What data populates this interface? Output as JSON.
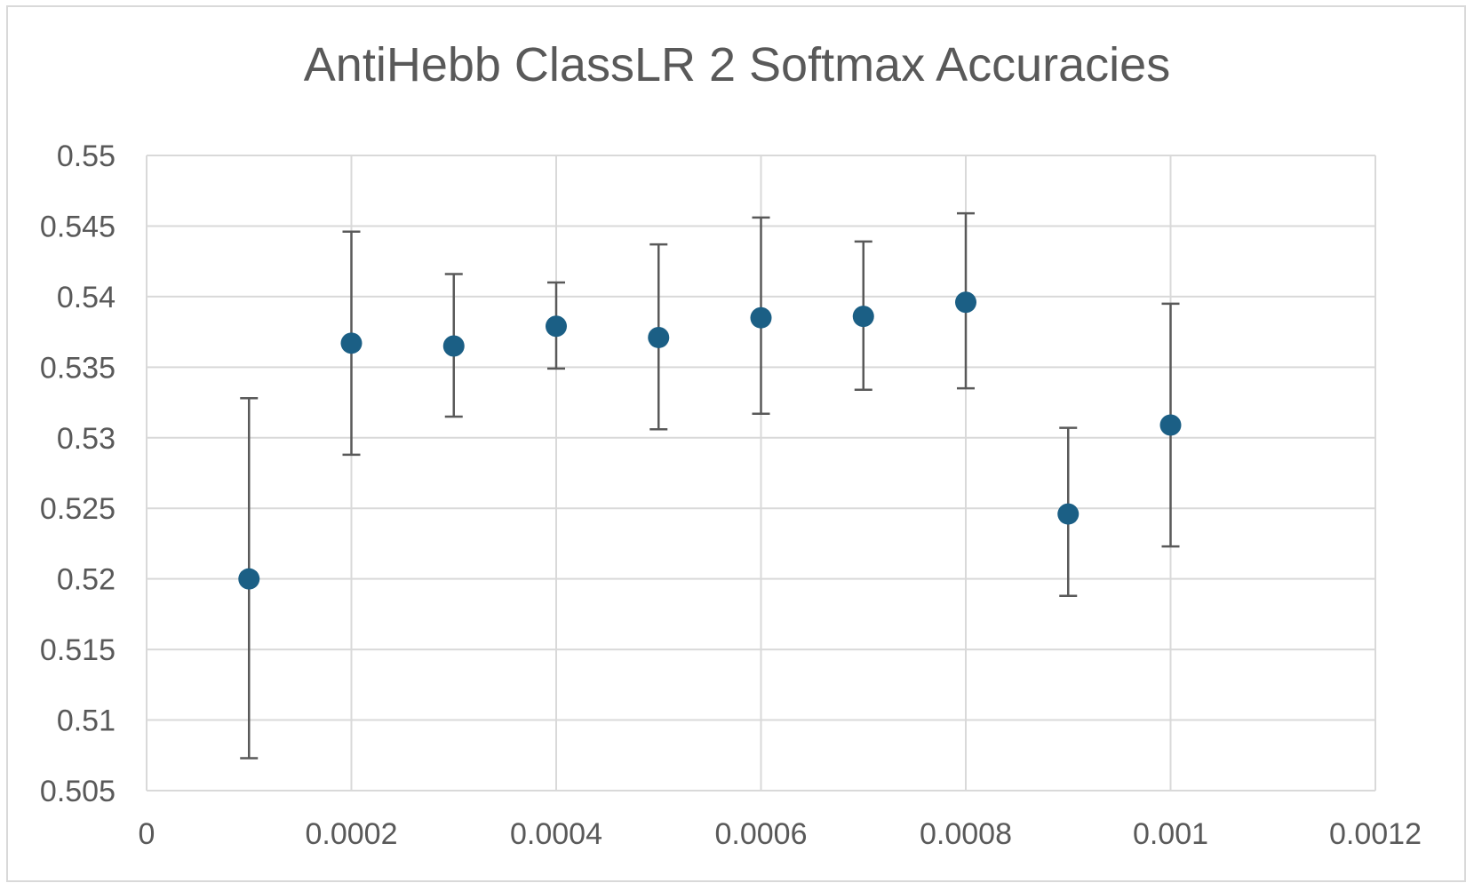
{
  "chart_data": {
    "type": "scatter",
    "title": "AntiHebb ClassLR 2 Softmax Accuracies",
    "xlabel": "",
    "ylabel": "",
    "xlim": [
      0,
      0.0012
    ],
    "ylim": [
      0.505,
      0.55
    ],
    "x_ticks": [
      {
        "value": 0,
        "label": "0"
      },
      {
        "value": 0.0002,
        "label": "0.0002"
      },
      {
        "value": 0.0004,
        "label": "0.0004"
      },
      {
        "value": 0.0006,
        "label": "0.0006"
      },
      {
        "value": 0.0008,
        "label": "0.0008"
      },
      {
        "value": 0.001,
        "label": "0.001"
      },
      {
        "value": 0.0012,
        "label": "0.0012"
      }
    ],
    "y_ticks": [
      {
        "value": 0.505,
        "label": "0.505"
      },
      {
        "value": 0.51,
        "label": "0.51"
      },
      {
        "value": 0.515,
        "label": "0.515"
      },
      {
        "value": 0.52,
        "label": "0.52"
      },
      {
        "value": 0.525,
        "label": "0.525"
      },
      {
        "value": 0.53,
        "label": "0.53"
      },
      {
        "value": 0.535,
        "label": "0.535"
      },
      {
        "value": 0.54,
        "label": "0.54"
      },
      {
        "value": 0.545,
        "label": "0.545"
      },
      {
        "value": 0.55,
        "label": "0.55"
      }
    ],
    "grid": true,
    "legend": "none",
    "marker_color": "#1b5f85",
    "errorbar_color": "#595959",
    "series": [
      {
        "points": [
          {
            "x": 0.0001,
            "y": 0.52,
            "err_low": 0.5073,
            "err_high": 0.5328
          },
          {
            "x": 0.0002,
            "y": 0.5367,
            "err_low": 0.5288,
            "err_high": 0.5446
          },
          {
            "x": 0.0003,
            "y": 0.5365,
            "err_low": 0.5315,
            "err_high": 0.5416
          },
          {
            "x": 0.0004,
            "y": 0.5379,
            "err_low": 0.5349,
            "err_high": 0.541
          },
          {
            "x": 0.0005,
            "y": 0.5371,
            "err_low": 0.5306,
            "err_high": 0.5437
          },
          {
            "x": 0.0006,
            "y": 0.5385,
            "err_low": 0.5317,
            "err_high": 0.5456
          },
          {
            "x": 0.0007,
            "y": 0.5386,
            "err_low": 0.5334,
            "err_high": 0.5439
          },
          {
            "x": 0.0008,
            "y": 0.5396,
            "err_low": 0.5335,
            "err_high": 0.5459
          },
          {
            "x": 0.0009,
            "y": 0.5246,
            "err_low": 0.5188,
            "err_high": 0.5307
          },
          {
            "x": 0.001,
            "y": 0.5309,
            "err_low": 0.5223,
            "err_high": 0.5395
          }
        ]
      }
    ]
  }
}
